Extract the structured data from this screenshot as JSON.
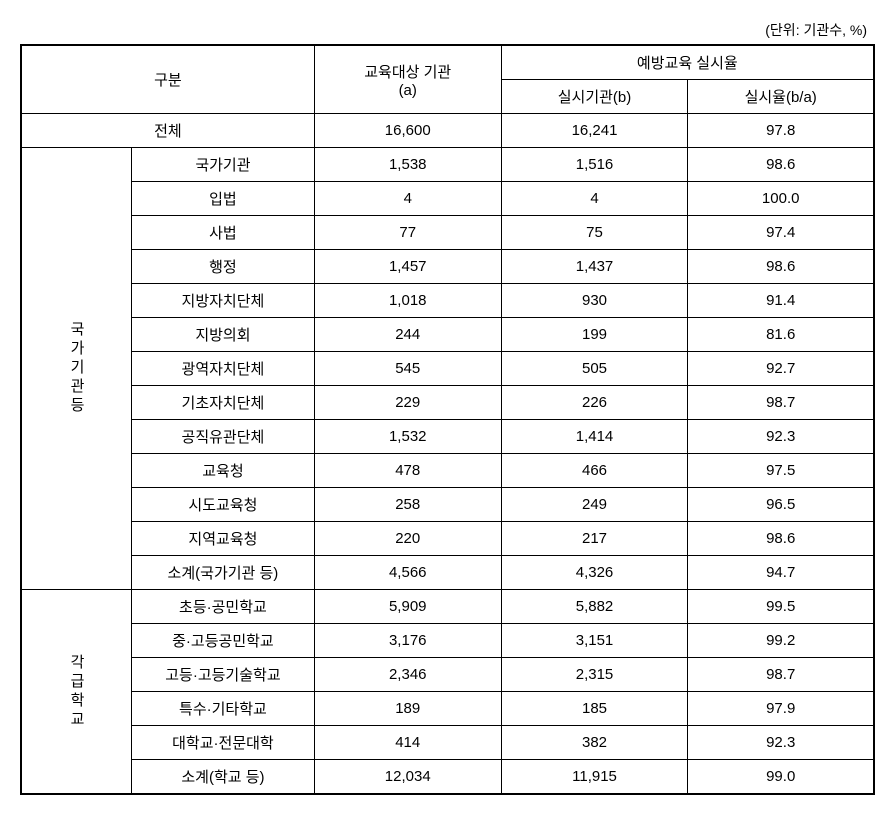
{
  "unit_label": "(단위: 기관수, %)",
  "header": {
    "division": "구분",
    "target": "교육대상 기관\n(a)",
    "prevention_rate": "예방교육 실시율",
    "impl_org": "실시기관(b)",
    "impl_rate": "실시율(b/a)"
  },
  "total_row": {
    "label": "전체",
    "target": "16,600",
    "impl": "16,241",
    "rate": "97.8"
  },
  "group1": {
    "header": "국가기관등",
    "rows": [
      {
        "label": "국가기관",
        "target": "1,538",
        "impl": "1,516",
        "rate": "98.6"
      },
      {
        "label": "입법",
        "target": "4",
        "impl": "4",
        "rate": "100.0"
      },
      {
        "label": "사법",
        "target": "77",
        "impl": "75",
        "rate": "97.4"
      },
      {
        "label": "행정",
        "target": "1,457",
        "impl": "1,437",
        "rate": "98.6"
      },
      {
        "label": "지방자치단체",
        "target": "1,018",
        "impl": "930",
        "rate": "91.4"
      },
      {
        "label": "지방의회",
        "target": "244",
        "impl": "199",
        "rate": "81.6"
      },
      {
        "label": "광역자치단체",
        "target": "545",
        "impl": "505",
        "rate": "92.7"
      },
      {
        "label": "기초자치단체",
        "target": "229",
        "impl": "226",
        "rate": "98.7"
      },
      {
        "label": "공직유관단체",
        "target": "1,532",
        "impl": "1,414",
        "rate": "92.3"
      },
      {
        "label": "교육청",
        "target": "478",
        "impl": "466",
        "rate": "97.5"
      },
      {
        "label": "시도교육청",
        "target": "258",
        "impl": "249",
        "rate": "96.5"
      },
      {
        "label": "지역교육청",
        "target": "220",
        "impl": "217",
        "rate": "98.6"
      },
      {
        "label": "소계(국가기관 등)",
        "target": "4,566",
        "impl": "4,326",
        "rate": "94.7"
      }
    ]
  },
  "group2": {
    "header": "각급학교",
    "rows": [
      {
        "label": "초등·공민학교",
        "target": "5,909",
        "impl": "5,882",
        "rate": "99.5"
      },
      {
        "label": "중·고등공민학교",
        "target": "3,176",
        "impl": "3,151",
        "rate": "99.2"
      },
      {
        "label": "고등·고등기술학교",
        "target": "2,346",
        "impl": "2,315",
        "rate": "98.7"
      },
      {
        "label": "특수·기타학교",
        "target": "189",
        "impl": "185",
        "rate": "97.9"
      },
      {
        "label": "대학교·전문대학",
        "target": "414",
        "impl": "382",
        "rate": "92.3"
      },
      {
        "label": "소계(학교 등)",
        "target": "12,034",
        "impl": "11,915",
        "rate": "99.0"
      }
    ]
  },
  "colors": {
    "border": "#000000",
    "background": "#ffffff",
    "text": "#000000"
  }
}
